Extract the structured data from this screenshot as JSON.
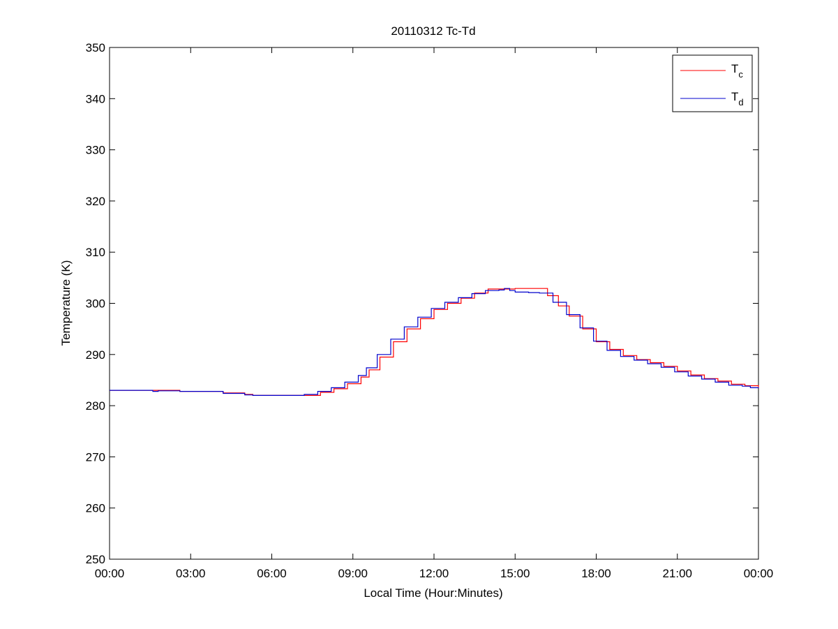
{
  "chart_data": {
    "type": "line",
    "title": "20110312 Tc-Td",
    "xlabel": "Local Time (Hour:Minutes)",
    "ylabel": "Temperature (K)",
    "xlim": [
      0,
      24
    ],
    "ylim": [
      250,
      350
    ],
    "xticks": [
      0,
      3,
      6,
      9,
      12,
      15,
      18,
      21,
      24
    ],
    "xtick_labels": [
      "00:00",
      "03:00",
      "06:00",
      "09:00",
      "12:00",
      "15:00",
      "18:00",
      "21:00",
      "00:00"
    ],
    "yticks": [
      250,
      260,
      270,
      280,
      290,
      300,
      310,
      320,
      330,
      340,
      350
    ],
    "ytick_labels": [
      "250",
      "260",
      "270",
      "280",
      "290",
      "300",
      "310",
      "320",
      "330",
      "340",
      "350"
    ],
    "grid": false,
    "legend_position": "top-right",
    "series": [
      {
        "name": "T",
        "subscript": "c",
        "color": "#ff0000",
        "x": [
          0.0,
          1.5,
          2.6,
          4.0,
          4.2,
          5.0,
          5.3,
          6.4,
          6.6,
          7.3,
          7.8,
          8.3,
          8.8,
          9.3,
          9.6,
          10.0,
          10.5,
          11.0,
          11.5,
          12.0,
          12.5,
          13.0,
          13.5,
          14.0,
          15.0,
          15.8,
          16.2,
          16.6,
          17.0,
          17.5,
          18.0,
          18.5,
          19.0,
          19.5,
          20.0,
          20.5,
          21.0,
          21.5,
          22.0,
          22.5,
          23.0,
          23.5,
          24.0
        ],
        "y": [
          283.0,
          283.0,
          282.8,
          282.8,
          282.5,
          282.2,
          282.0,
          282.0,
          282.0,
          282.0,
          282.6,
          283.3,
          284.3,
          285.6,
          287.0,
          289.5,
          292.5,
          295.0,
          297.0,
          298.8,
          300.0,
          301.0,
          302.0,
          302.8,
          302.9,
          302.9,
          301.5,
          299.5,
          297.5,
          295.0,
          292.5,
          291.0,
          289.8,
          289.0,
          288.4,
          287.7,
          286.8,
          286.0,
          285.3,
          284.8,
          284.2,
          283.9,
          283.6
        ]
      },
      {
        "name": "T",
        "subscript": "d",
        "color": "#0000cc",
        "x": [
          0.0,
          1.4,
          1.6,
          1.8,
          2.6,
          4.0,
          4.2,
          5.0,
          5.3,
          6.4,
          6.6,
          7.2,
          7.7,
          8.2,
          8.7,
          9.2,
          9.5,
          9.9,
          10.4,
          10.9,
          11.4,
          11.9,
          12.4,
          12.9,
          13.4,
          13.9,
          14.4,
          14.6,
          14.8,
          15.0,
          15.5,
          15.9,
          16.4,
          16.9,
          17.4,
          17.9,
          18.4,
          18.9,
          19.4,
          19.9,
          20.4,
          20.9,
          21.4,
          21.9,
          22.4,
          22.9,
          23.4,
          23.7,
          24.0
        ],
        "y": [
          283.0,
          283.0,
          282.8,
          282.9,
          282.8,
          282.8,
          282.4,
          282.1,
          282.0,
          282.0,
          282.0,
          282.2,
          282.8,
          283.5,
          284.6,
          285.9,
          287.4,
          290.0,
          293.0,
          295.4,
          297.3,
          299.0,
          300.2,
          301.1,
          301.9,
          302.5,
          302.6,
          302.9,
          302.5,
          302.2,
          302.1,
          302.0,
          300.2,
          297.8,
          295.2,
          292.6,
          290.8,
          289.6,
          288.9,
          288.2,
          287.5,
          286.6,
          285.8,
          285.2,
          284.6,
          284.0,
          283.8,
          283.5,
          283.6
        ]
      }
    ]
  }
}
